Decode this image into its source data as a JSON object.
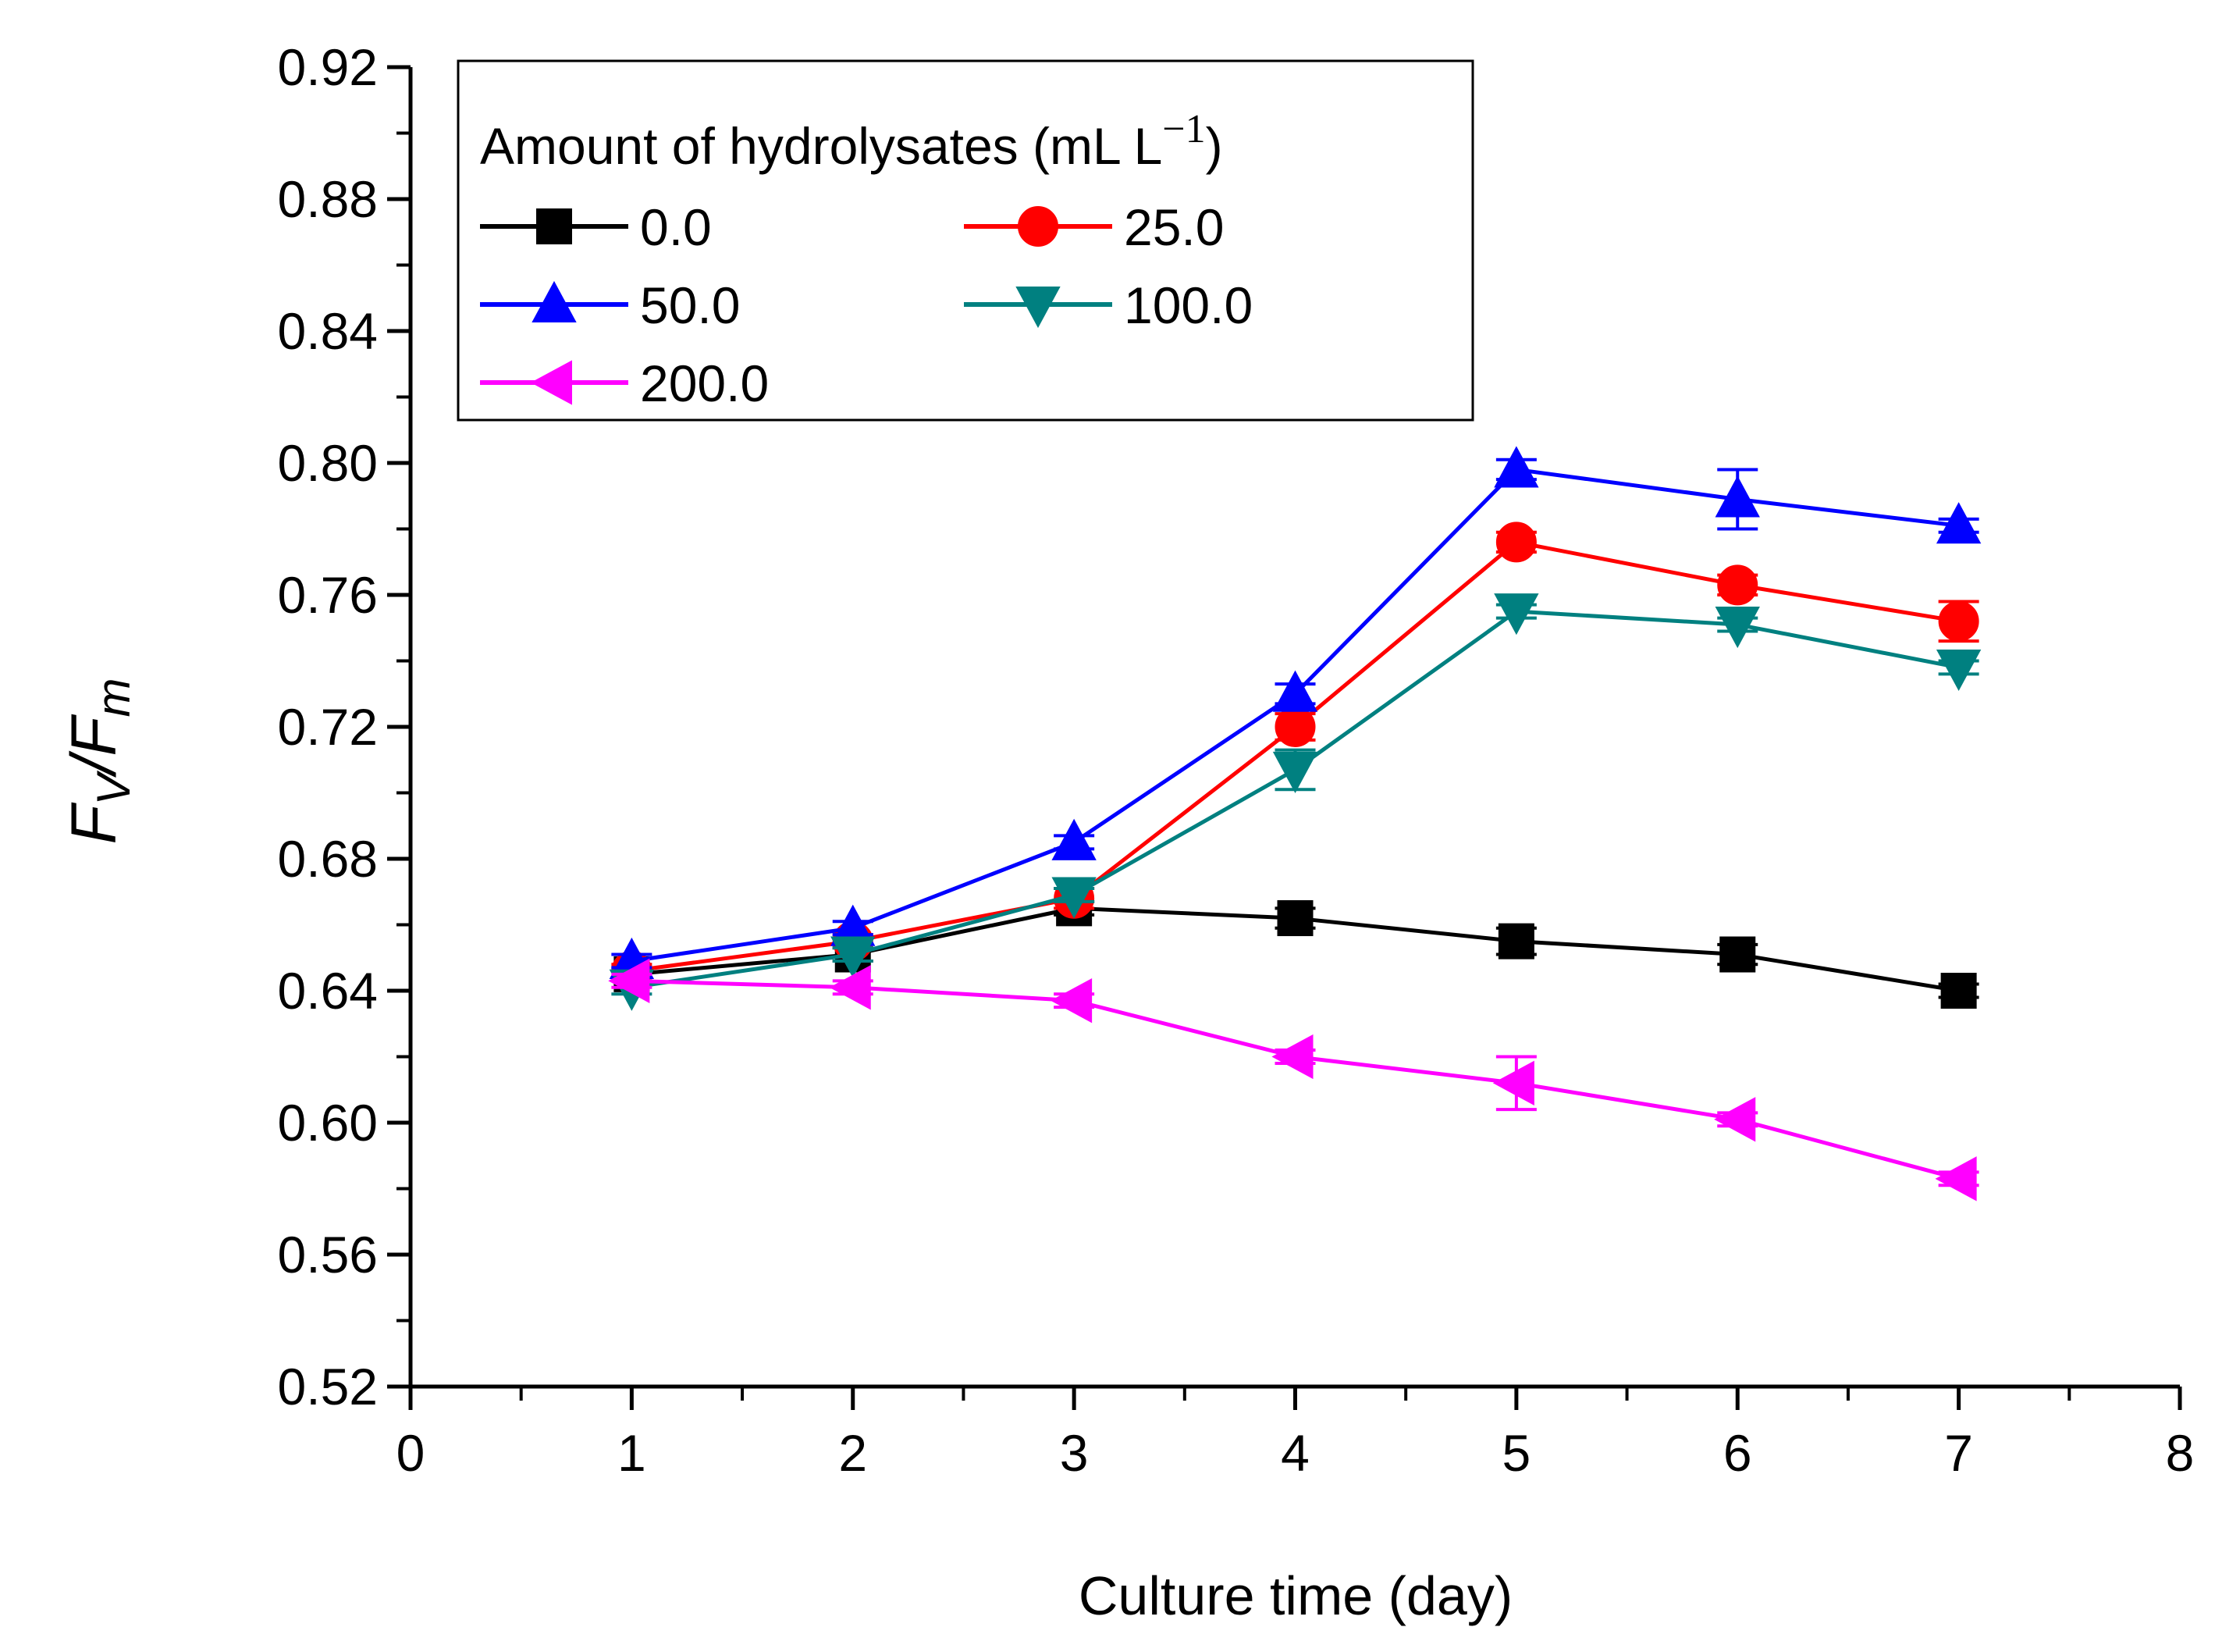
{
  "chart_data": {
    "type": "line",
    "title": "",
    "xlabel": "Culture time (day)",
    "ylabel": {
      "main": "F",
      "sub1": "V",
      "slash": "/",
      "main2": "F",
      "sub2": "m"
    },
    "xlim": [
      0,
      8
    ],
    "ylim": [
      0.52,
      0.92
    ],
    "x_ticks": [
      "0",
      "1",
      "2",
      "3",
      "4",
      "5",
      "6",
      "7",
      "8"
    ],
    "y_ticks": [
      "0.52",
      "0.56",
      "0.60",
      "0.64",
      "0.68",
      "0.72",
      "0.76",
      "0.80",
      "0.84",
      "0.88",
      "0.92"
    ],
    "grid": false,
    "legend": {
      "title": "Amount of hydrolysates (mL L",
      "title_sup": "−1",
      "title_close": ")",
      "placement": "top-left"
    },
    "x": [
      1,
      2,
      3,
      4,
      5,
      6,
      7
    ],
    "series": [
      {
        "name": "0.0",
        "color": "#000000",
        "marker": "square",
        "values": [
          0.645,
          0.651,
          0.665,
          0.662,
          0.655,
          0.651,
          0.64
        ],
        "errors": [
          0.002,
          0.002,
          0.002,
          0.003,
          0.004,
          0.003,
          0.002
        ]
      },
      {
        "name": "25.0",
        "color": "#ff0000",
        "marker": "circle",
        "values": [
          0.646,
          0.655,
          0.668,
          0.72,
          0.776,
          0.763,
          0.752
        ],
        "errors": [
          0.002,
          0.002,
          0.003,
          0.004,
          0.003,
          0.003,
          0.006
        ]
      },
      {
        "name": "50.0",
        "color": "#0000ff",
        "marker": "triangle-up",
        "values": [
          0.649,
          0.659,
          0.685,
          0.73,
          0.798,
          0.789,
          0.781
        ],
        "errors": [
          0.002,
          0.002,
          0.002,
          0.003,
          0.003,
          0.009,
          0.002
        ]
      },
      {
        "name": "100.0",
        "color": "#008080",
        "marker": "triangle-down",
        "values": [
          0.641,
          0.651,
          0.669,
          0.707,
          0.755,
          0.751,
          0.738
        ],
        "errors": [
          0.002,
          0.002,
          0.002,
          0.006,
          0.002,
          0.002,
          0.002
        ]
      },
      {
        "name": "200.0",
        "color": "#ff00ff",
        "marker": "triangle-left",
        "values": [
          0.643,
          0.641,
          0.637,
          0.62,
          0.612,
          0.601,
          0.583
        ],
        "errors": [
          0.002,
          0.002,
          0.002,
          0.002,
          0.008,
          0.002,
          0.002
        ]
      }
    ]
  }
}
